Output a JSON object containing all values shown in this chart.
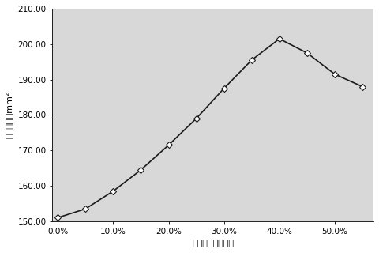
{
  "x": [
    0.0,
    0.05,
    0.1,
    0.15,
    0.2,
    0.25,
    0.3,
    0.35,
    0.4,
    0.45,
    0.5,
    0.55
  ],
  "y": [
    151.0,
    153.5,
    158.5,
    164.5,
    171.5,
    179.0,
    187.5,
    195.5,
    201.5,
    197.5,
    191.5,
    188.0
  ],
  "xlabel": "氧化锅质量百分数",
  "ylabel": "锅浆面积，mm²",
  "ylim": [
    150.0,
    210.0
  ],
  "xlim": [
    -0.01,
    0.57
  ],
  "yticks": [
    150.0,
    160.0,
    170.0,
    180.0,
    190.0,
    200.0,
    210.0
  ],
  "xticks": [
    0.0,
    0.1,
    0.2,
    0.3,
    0.4,
    0.5
  ],
  "xtick_labels": [
    "0.0%",
    "10.0%",
    "20.0%",
    "30.0%",
    "40.0%",
    "50.0%"
  ],
  "ytick_labels": [
    "150.00",
    "160.00",
    "170.00",
    "180.00",
    "190.00",
    "200.00",
    "210.00"
  ],
  "line_color": "#1a1a1a",
  "marker": "D",
  "marker_size": 4,
  "marker_facecolor": "white",
  "marker_edgecolor": "#1a1a1a",
  "linewidth": 1.2,
  "plot_bg_color": "#d8d8d8",
  "fig_bg_color": "#ffffff"
}
